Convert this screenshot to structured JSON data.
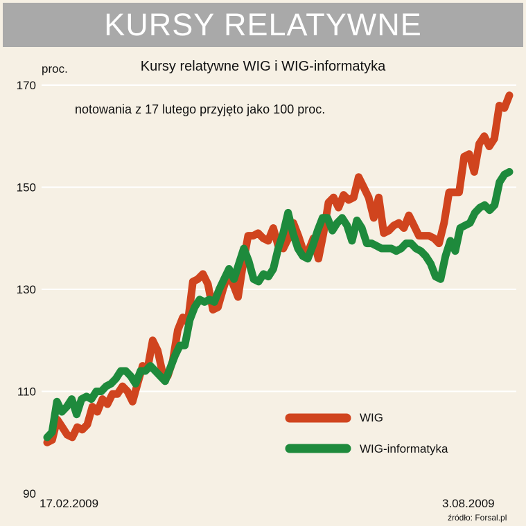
{
  "banner": {
    "title": "KURSY RELATYWNE"
  },
  "chart_data": {
    "type": "line",
    "title": "Kursy relatywne WIG i WIG-informatyka",
    "subtitle": "notowania z 17 lutego przyjęto jako 100 proc.",
    "ylabel": "proc.",
    "ylim": [
      90,
      170
    ],
    "yticks": [
      "90",
      "110",
      "130",
      "150",
      "170"
    ],
    "grid": true,
    "legend_position": "bottom-right",
    "x_start_label": "17.02.2009",
    "x_end_label": "3.08.2009",
    "source": "źródło: Forsal.pl",
    "series": [
      {
        "name": "WIG",
        "color": "#d0441e",
        "values": [
          100,
          100.5,
          104.5,
          103,
          101.5,
          101,
          103,
          102.5,
          103.5,
          107,
          106,
          108.5,
          107.5,
          109.5,
          109.5,
          111,
          110,
          108,
          111.5,
          115,
          114.5,
          120,
          118,
          113.5,
          113,
          116,
          122,
          124.5,
          123.5,
          131.5,
          132,
          133,
          131,
          126,
          126.5,
          130,
          133,
          131,
          128.5,
          135,
          140.5,
          140.5,
          141,
          140,
          139.5,
          142,
          138.5,
          138,
          140,
          143,
          140.5,
          137.5,
          137.5,
          140,
          136,
          141,
          147,
          148,
          146,
          148.5,
          147.5,
          148,
          152,
          150,
          148,
          144,
          148,
          141,
          141.5,
          142.5,
          143,
          142,
          144.5,
          142.5,
          140.5,
          140.5,
          140.5,
          140,
          139,
          143,
          149,
          149,
          149,
          156,
          156.5,
          153,
          158.5,
          160,
          158,
          159.5,
          166,
          165.5,
          168
        ]
      },
      {
        "name": "WIG-informatyka",
        "color": "#1e8a3c",
        "values": [
          101,
          102,
          108,
          106,
          107,
          108.5,
          105.5,
          108.5,
          109,
          108.5,
          110,
          110,
          111,
          111.5,
          112.5,
          114,
          114,
          113,
          111.5,
          114,
          114,
          115,
          114,
          113,
          112,
          114.5,
          117,
          119,
          119,
          124,
          126.5,
          128,
          127.5,
          128,
          127.5,
          130,
          132,
          134,
          132,
          135,
          138,
          135.5,
          132,
          131.5,
          133,
          132.5,
          134,
          138,
          141,
          145,
          141,
          138,
          136.5,
          136,
          138.5,
          141.5,
          144,
          144,
          141.5,
          143,
          144,
          142.5,
          139.5,
          143.5,
          142,
          139,
          139,
          138.5,
          138,
          138,
          138,
          137.5,
          138,
          139,
          139,
          138,
          137.5,
          136.5,
          135,
          132.5,
          132,
          136.5,
          139.5,
          137.5,
          142,
          142.5,
          143,
          145,
          146,
          146.5,
          145.5,
          146.5,
          151,
          152.5,
          153
        ]
      }
    ]
  }
}
